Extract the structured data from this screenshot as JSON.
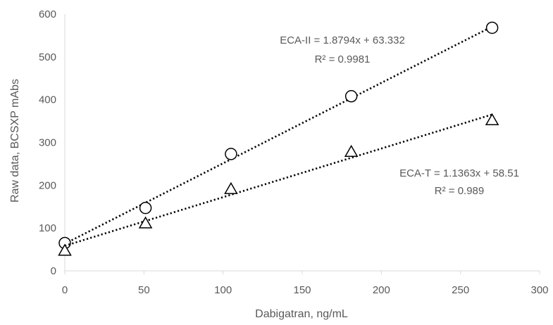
{
  "chart_data": {
    "type": "scatter",
    "title": "",
    "xlabel": "Dabigatran, ng/mL",
    "ylabel": "Raw data, BCSXP mAbs",
    "xlim": [
      0,
      300
    ],
    "ylim": [
      0,
      600
    ],
    "xticks": [
      "0",
      "50",
      "100",
      "150",
      "200",
      "250",
      "300"
    ],
    "yticks": [
      "0",
      "100",
      "200",
      "300",
      "400",
      "500",
      "600"
    ],
    "grid": false,
    "legend": "none",
    "series": [
      {
        "marker": "circle",
        "color": "#000000",
        "x": [
          0,
          51,
          105,
          181,
          270
        ],
        "y": [
          65,
          147,
          273,
          408,
          568
        ],
        "trendline": {
          "slope": 1.8794,
          "intercept": 63.332,
          "style": "dotted"
        },
        "equation": "ECA-II = 1.8794x + 63.332",
        "r2": "R² = 0.9981"
      },
      {
        "marker": "triangle",
        "color": "#000000",
        "x": [
          0,
          51,
          105,
          181,
          270
        ],
        "y": [
          47,
          111,
          191,
          278,
          352
        ],
        "trendline": {
          "slope": 1.1363,
          "intercept": 58.51,
          "style": "dotted"
        },
        "equation": "ECA-T = 1.1363x + 58.51",
        "r2": "R² = 0.989"
      }
    ]
  }
}
